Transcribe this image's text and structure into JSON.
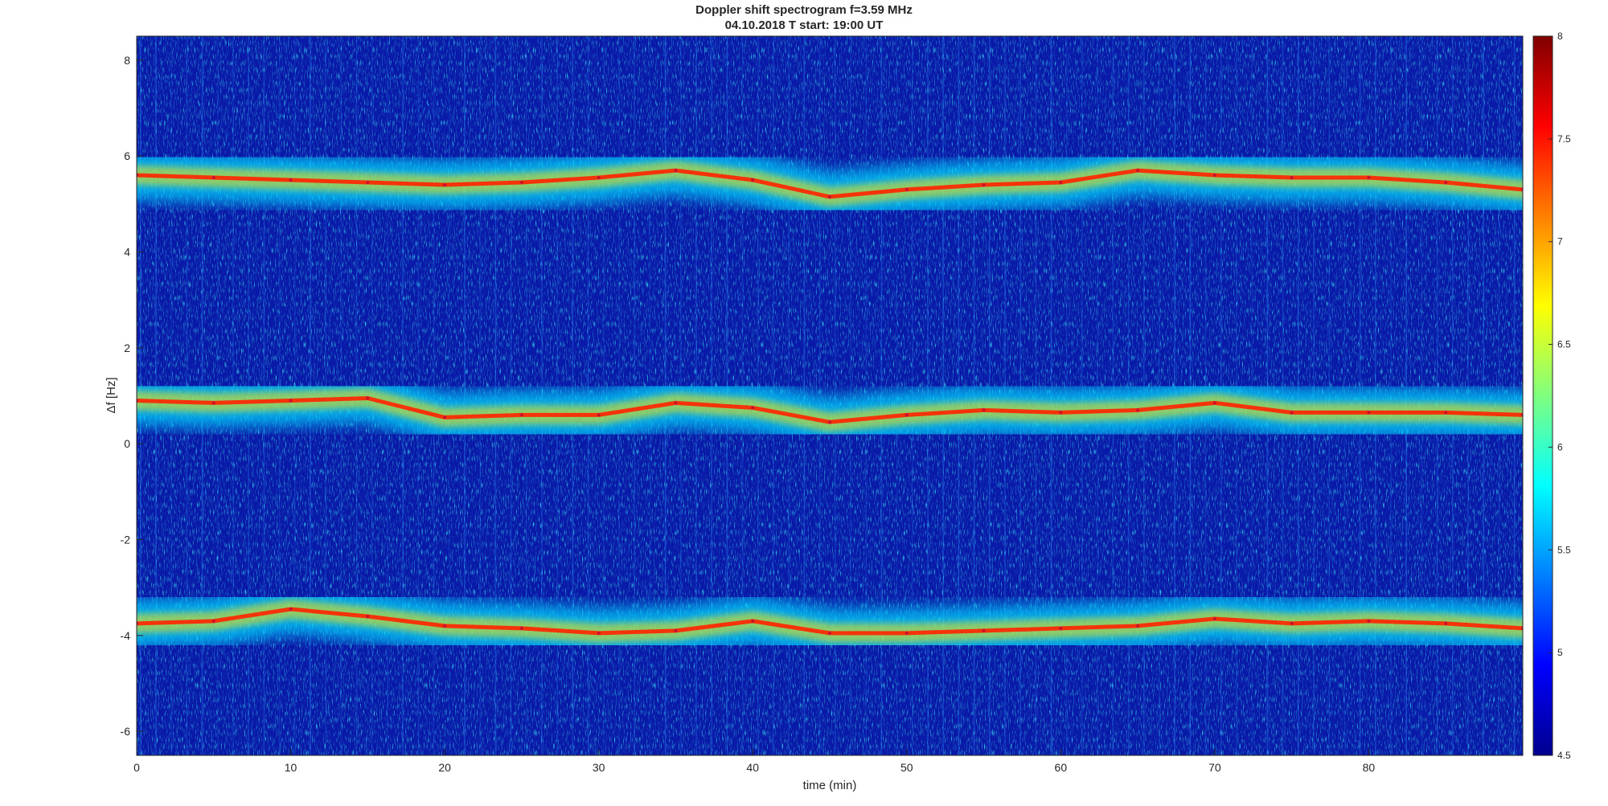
{
  "chart_data": {
    "type": "heatmap",
    "title": "Doppler shift spectrogram f=3.59 MHz",
    "subtitle": "04.10.2018   T start: 19:00 UT",
    "xlabel": "time (min)",
    "ylabel": "Δf [Hz]",
    "xlim": [
      0,
      90
    ],
    "ylim": [
      -6.5,
      8.5
    ],
    "xticks": [
      0,
      10,
      20,
      30,
      40,
      50,
      60,
      70,
      80
    ],
    "yticks": [
      -6,
      -4,
      -2,
      0,
      2,
      4,
      6,
      8
    ],
    "colorbar": {
      "colormap": "jet",
      "clim": [
        4.5,
        8
      ],
      "ticks": [
        4.5,
        5,
        5.5,
        6,
        6.5,
        7,
        7.5,
        8
      ]
    },
    "grid": false,
    "series": [
      {
        "x": [
          0,
          5,
          10,
          15,
          20,
          25,
          30,
          35,
          40,
          45,
          50,
          55,
          60,
          65,
          70,
          75,
          80,
          85,
          90
        ],
        "y": [
          5.6,
          5.55,
          5.5,
          5.45,
          5.4,
          5.45,
          5.55,
          5.7,
          5.5,
          5.15,
          5.3,
          5.4,
          5.45,
          5.7,
          5.6,
          5.55,
          5.55,
          5.45,
          5.3
        ]
      },
      {
        "x": [
          0,
          5,
          10,
          15,
          20,
          25,
          30,
          35,
          40,
          45,
          50,
          55,
          60,
          65,
          70,
          75,
          80,
          85,
          90
        ],
        "y": [
          0.9,
          0.85,
          0.9,
          0.95,
          0.55,
          0.6,
          0.6,
          0.85,
          0.75,
          0.45,
          0.6,
          0.7,
          0.65,
          0.7,
          0.85,
          0.65,
          0.65,
          0.65,
          0.6
        ]
      },
      {
        "x": [
          0,
          5,
          10,
          15,
          20,
          25,
          30,
          35,
          40,
          45,
          50,
          55,
          60,
          65,
          70,
          75,
          80,
          85,
          90
        ],
        "y": [
          -3.75,
          -3.7,
          -3.45,
          -3.6,
          -3.8,
          -3.85,
          -3.95,
          -3.9,
          -3.7,
          -3.95,
          -3.95,
          -3.9,
          -3.85,
          -3.8,
          -3.65,
          -3.75,
          -3.7,
          -3.75,
          -3.85
        ]
      }
    ]
  }
}
